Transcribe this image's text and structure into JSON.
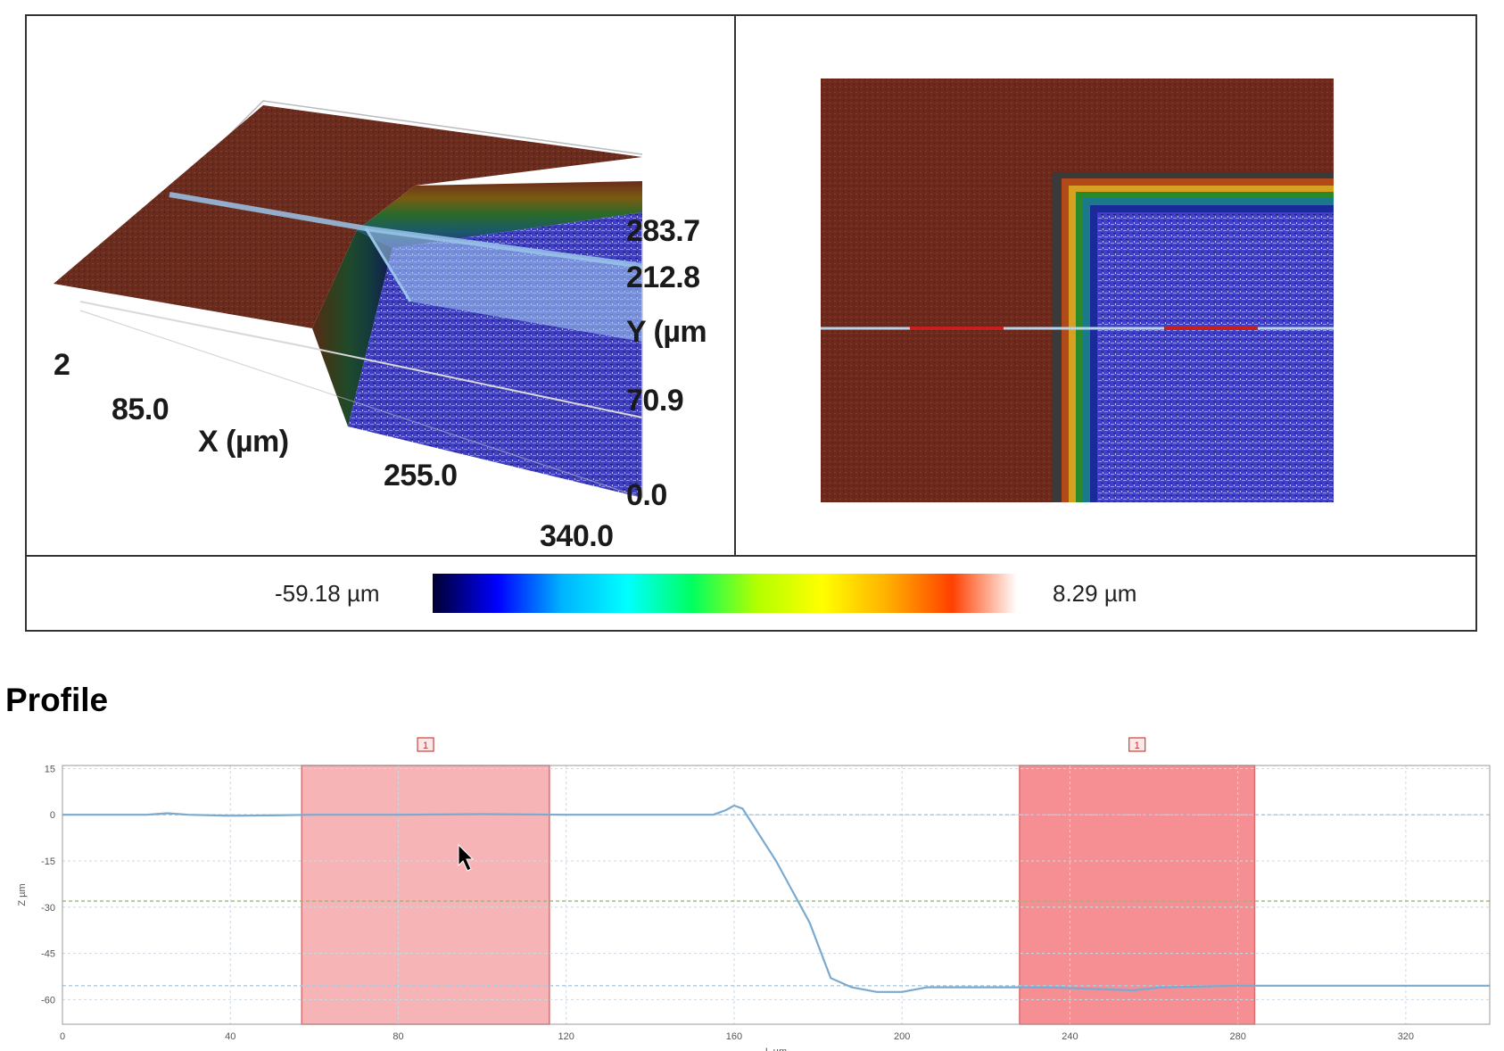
{
  "view3d": {
    "y_ticks": [
      "283.7",
      "212.8",
      "70.9",
      "0.0"
    ],
    "y_axis_label": "Y (µm",
    "x_ticks": [
      "85.0",
      "255.0",
      "340.0"
    ],
    "x_axis_label": "X (µm)",
    "partial_tick": "2"
  },
  "colorscale": {
    "min_label": "-59.18 µm",
    "max_label": "8.29 µm",
    "colors": [
      "#000030",
      "#0000ff",
      "#00b4ff",
      "#00ffff",
      "#00ff60",
      "#b4ff00",
      "#ffff00",
      "#ffb000",
      "#ff4000",
      "#ffffff"
    ]
  },
  "profile": {
    "title": "Profile",
    "region_markers": [
      "1",
      "1"
    ],
    "x_label": "L µm",
    "y_label": "Z µm"
  },
  "chart_data": {
    "type": "line",
    "title": "Profile",
    "xlabel": "L µm",
    "ylabel": "Z µm",
    "xlim": [
      0,
      340
    ],
    "ylim": [
      -68,
      16
    ],
    "x_ticks": [
      0,
      40,
      80,
      120,
      160,
      200,
      240,
      280,
      320
    ],
    "y_ticks": [
      15,
      0,
      -15,
      -30,
      -45,
      -60
    ],
    "grid": true,
    "reference_lines": [
      {
        "y": 0,
        "color": "#a9cbe3"
      },
      {
        "y": -28,
        "color": "#8dbf6a"
      },
      {
        "y": -55.5,
        "color": "#a9cbe3"
      }
    ],
    "regions": [
      {
        "label": "1",
        "x_start": 57,
        "x_end": 116,
        "color": "#f59ca0"
      },
      {
        "label": "1",
        "x_start": 228,
        "x_end": 284,
        "color": "#f36a70"
      }
    ],
    "series": [
      {
        "color": "#7aaad0",
        "points": [
          [
            0,
            0
          ],
          [
            20,
            0
          ],
          [
            25,
            0.5
          ],
          [
            30,
            0
          ],
          [
            40,
            -0.3
          ],
          [
            50,
            -0.2
          ],
          [
            60,
            0
          ],
          [
            80,
            0
          ],
          [
            100,
            0.2
          ],
          [
            120,
            0
          ],
          [
            140,
            0
          ],
          [
            155,
            0
          ],
          [
            158,
            1.5
          ],
          [
            160,
            3
          ],
          [
            162,
            2
          ],
          [
            170,
            -15
          ],
          [
            178,
            -35
          ],
          [
            183,
            -53
          ],
          [
            188,
            -56
          ],
          [
            194,
            -57.5
          ],
          [
            200,
            -57.5
          ],
          [
            206,
            -56
          ],
          [
            215,
            -56
          ],
          [
            225,
            -56
          ],
          [
            235,
            -56
          ],
          [
            245,
            -56.5
          ],
          [
            255,
            -57
          ],
          [
            262,
            -56
          ],
          [
            280,
            -55.5
          ],
          [
            300,
            -55.5
          ],
          [
            320,
            -55.5
          ],
          [
            340,
            -55.5
          ]
        ]
      }
    ]
  }
}
